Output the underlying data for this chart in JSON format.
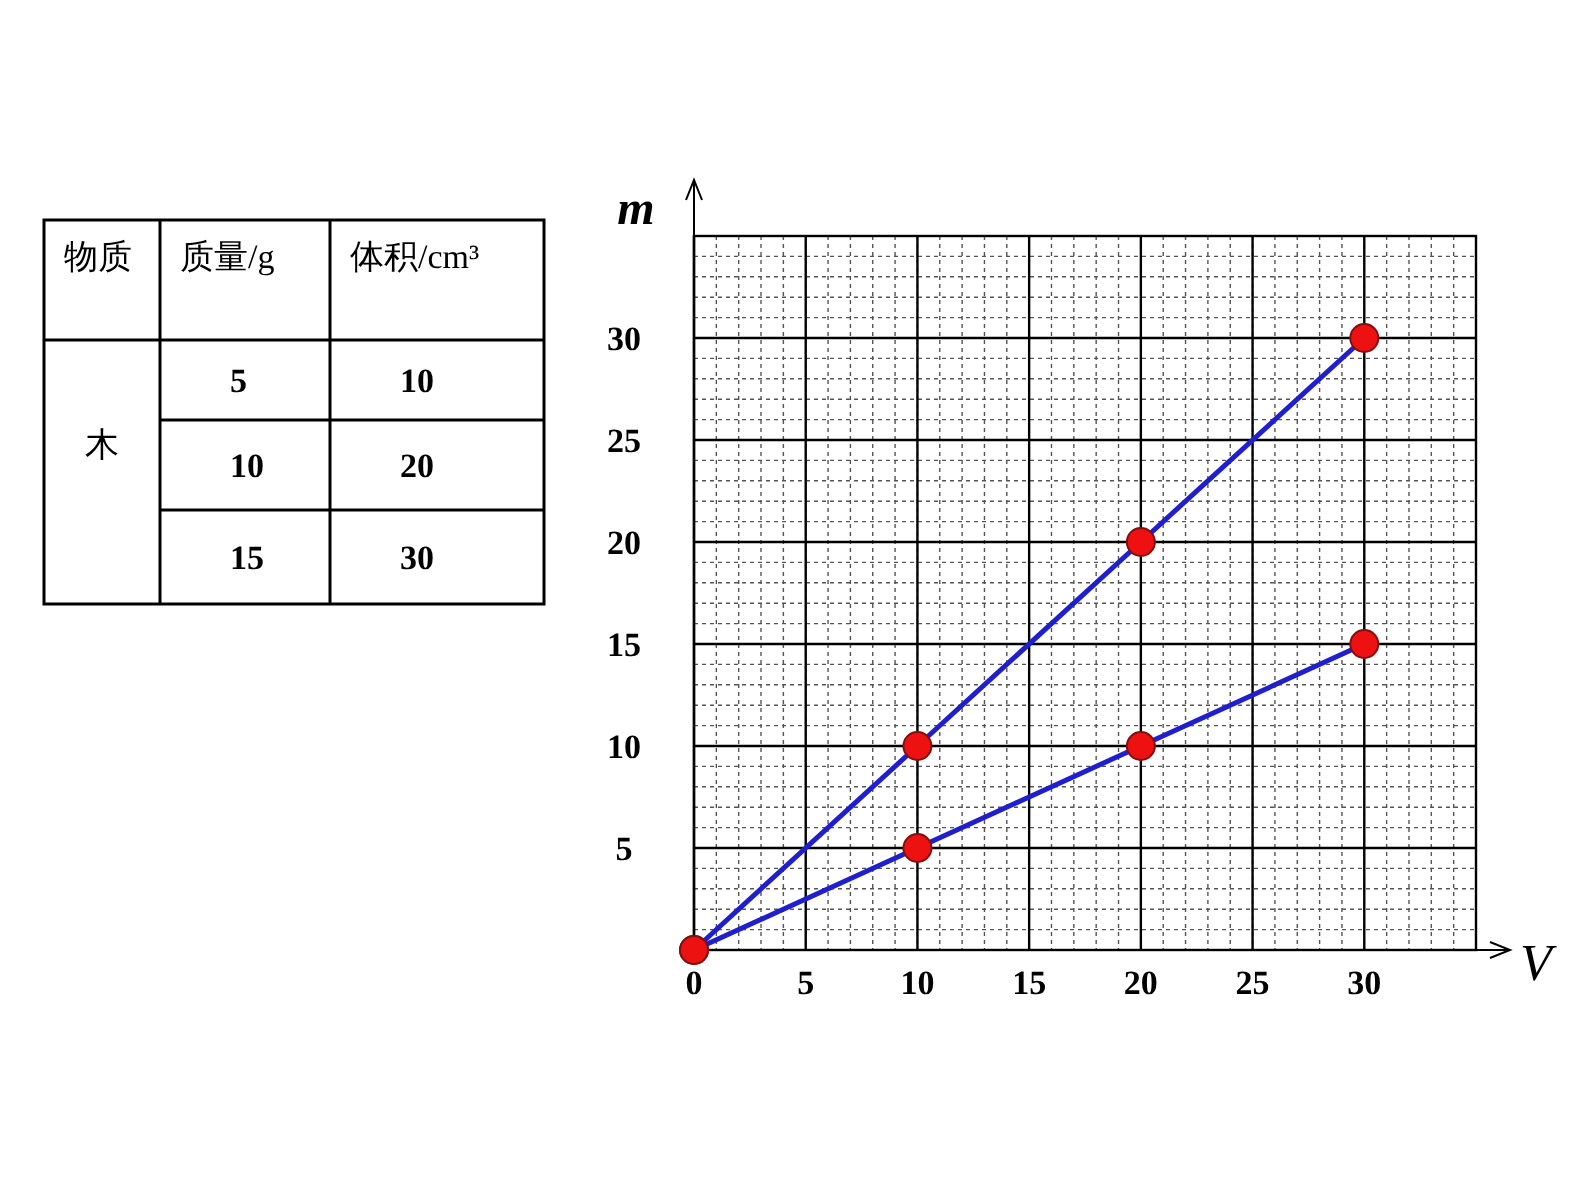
{
  "chart_data": {
    "type": "line",
    "xlabel": "V",
    "ylabel": "m",
    "x": [
      0,
      10,
      20,
      30
    ],
    "series": [
      {
        "color": "#1f1fd0",
        "values": [
          0,
          10,
          20,
          30
        ]
      },
      {
        "color": "#1f1fd0",
        "values": [
          0,
          5,
          10,
          15
        ]
      }
    ],
    "xlim": [
      0,
      35
    ],
    "ylim": [
      0,
      35
    ],
    "xticks": [
      0,
      5,
      10,
      15,
      20,
      25,
      30
    ],
    "yticks": [
      5,
      10,
      15,
      20,
      25,
      30
    ],
    "grid": true,
    "marker": "circle",
    "line_style": "solid",
    "annotations": [
      "物质",
      "质量/g",
      "体积/cm³",
      "木",
      "5",
      "10",
      "10",
      "20",
      "15",
      "30"
    ]
  }
}
